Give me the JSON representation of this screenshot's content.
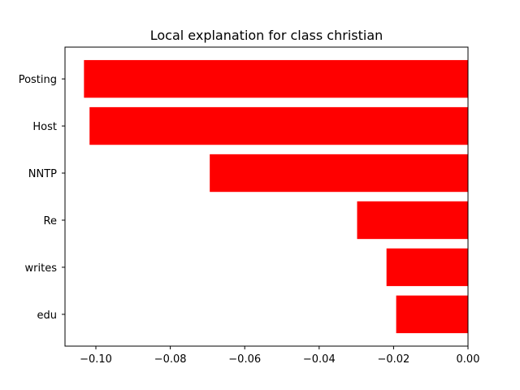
{
  "chart_data": {
    "type": "bar",
    "orientation": "horizontal",
    "title": "Local explanation for class christian",
    "xlabel": "",
    "ylabel": "",
    "categories": [
      "Posting",
      "Host",
      "NNTP",
      "Re",
      "writes",
      "edu"
    ],
    "values": [
      -0.1032,
      -0.1017,
      -0.0694,
      -0.0298,
      -0.0219,
      -0.0193
    ],
    "bar_color": "#ff0000",
    "xlim": [
      -0.1083,
      0.0
    ],
    "xticks": [
      -0.1,
      -0.08,
      -0.06,
      -0.04,
      -0.02,
      0.0
    ],
    "xtick_labels": [
      "−0.10",
      "−0.08",
      "−0.06",
      "−0.04",
      "−0.02",
      "0.00"
    ],
    "grid": false,
    "legend": "none"
  }
}
